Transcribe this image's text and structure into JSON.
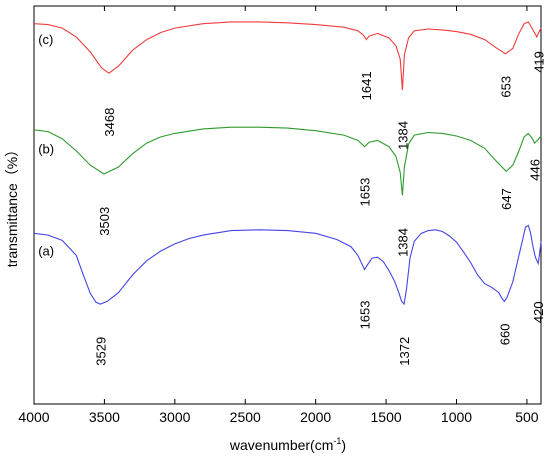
{
  "chart_data": {
    "type": "line",
    "title": "",
    "xlabel": "wavenumber(cm",
    "xlabel_sup": "-1",
    "xlabel_close": ")",
    "ylabel": "transmittance（%）",
    "xlim": [
      4000,
      400
    ],
    "x_reversed": true,
    "x_ticks": [
      4000,
      3500,
      3000,
      2500,
      2000,
      1500,
      1000,
      500
    ],
    "y_ticks_shown": false,
    "grid": false,
    "legend": "none",
    "series": [
      {
        "name": "(c)",
        "color": "#f03c3c",
        "points": [
          [
            4000,
            48.0
          ],
          [
            3900,
            47.9
          ],
          [
            3800,
            47.5
          ],
          [
            3700,
            46.5
          ],
          [
            3600,
            44.8
          ],
          [
            3520,
            43.0
          ],
          [
            3468,
            42.4
          ],
          [
            3400,
            43.2
          ],
          [
            3300,
            45.0
          ],
          [
            3200,
            46.2
          ],
          [
            3100,
            47.0
          ],
          [
            3000,
            47.5
          ],
          [
            2800,
            48.0
          ],
          [
            2600,
            48.2
          ],
          [
            2400,
            48.2
          ],
          [
            2200,
            48.1
          ],
          [
            2000,
            47.9
          ],
          [
            1800,
            47.6
          ],
          [
            1700,
            47.2
          ],
          [
            1660,
            46.7
          ],
          [
            1641,
            46.2
          ],
          [
            1620,
            46.6
          ],
          [
            1560,
            46.9
          ],
          [
            1480,
            46.4
          ],
          [
            1430,
            45.5
          ],
          [
            1400,
            44.0
          ],
          [
            1384,
            40.5
          ],
          [
            1370,
            44.5
          ],
          [
            1340,
            46.4
          ],
          [
            1300,
            47.2
          ],
          [
            1200,
            47.4
          ],
          [
            1100,
            47.3
          ],
          [
            1000,
            47.1
          ],
          [
            900,
            46.8
          ],
          [
            800,
            46.2
          ],
          [
            720,
            45.3
          ],
          [
            653,
            44.6
          ],
          [
            600,
            45.2
          ],
          [
            560,
            46.8
          ],
          [
            520,
            48.0
          ],
          [
            490,
            48.2
          ],
          [
            460,
            47.4
          ],
          [
            430,
            46.5
          ],
          [
            419,
            46.9
          ],
          [
            400,
            47.5
          ]
        ]
      },
      {
        "name": "(b)",
        "color": "#2e9a2e",
        "points": [
          [
            4000,
            36.0
          ],
          [
            3900,
            35.8
          ],
          [
            3800,
            35.0
          ],
          [
            3700,
            33.6
          ],
          [
            3600,
            32.0
          ],
          [
            3503,
            31.0
          ],
          [
            3400,
            31.8
          ],
          [
            3300,
            33.3
          ],
          [
            3200,
            34.5
          ],
          [
            3100,
            35.2
          ],
          [
            3000,
            35.6
          ],
          [
            2800,
            36.1
          ],
          [
            2600,
            36.3
          ],
          [
            2400,
            36.3
          ],
          [
            2200,
            36.2
          ],
          [
            2000,
            35.9
          ],
          [
            1800,
            35.4
          ],
          [
            1700,
            34.8
          ],
          [
            1653,
            34.1
          ],
          [
            1620,
            34.6
          ],
          [
            1560,
            34.8
          ],
          [
            1480,
            34.1
          ],
          [
            1430,
            33.0
          ],
          [
            1400,
            31.2
          ],
          [
            1384,
            28.6
          ],
          [
            1370,
            31.8
          ],
          [
            1340,
            34.4
          ],
          [
            1300,
            35.4
          ],
          [
            1200,
            35.7
          ],
          [
            1100,
            35.6
          ],
          [
            1000,
            35.3
          ],
          [
            900,
            34.8
          ],
          [
            800,
            33.9
          ],
          [
            720,
            32.5
          ],
          [
            647,
            31.3
          ],
          [
            600,
            32.0
          ],
          [
            560,
            33.5
          ],
          [
            520,
            35.2
          ],
          [
            490,
            35.6
          ],
          [
            460,
            35.0
          ],
          [
            446,
            34.5
          ],
          [
            420,
            34.9
          ],
          [
            400,
            35.3
          ]
        ]
      },
      {
        "name": "(a)",
        "color": "#4545e8",
        "points": [
          [
            4000,
            24.3
          ],
          [
            3900,
            24.1
          ],
          [
            3800,
            23.5
          ],
          [
            3700,
            21.8
          ],
          [
            3650,
            19.6
          ],
          [
            3600,
            17.5
          ],
          [
            3560,
            16.5
          ],
          [
            3529,
            16.3
          ],
          [
            3480,
            16.6
          ],
          [
            3400,
            17.6
          ],
          [
            3300,
            19.6
          ],
          [
            3200,
            21.2
          ],
          [
            3100,
            22.3
          ],
          [
            3000,
            23.1
          ],
          [
            2900,
            23.7
          ],
          [
            2800,
            24.1
          ],
          [
            2600,
            24.6
          ],
          [
            2400,
            24.7
          ],
          [
            2200,
            24.6
          ],
          [
            2000,
            24.3
          ],
          [
            1850,
            23.6
          ],
          [
            1750,
            22.8
          ],
          [
            1700,
            21.8
          ],
          [
            1670,
            20.8
          ],
          [
            1653,
            20.2
          ],
          [
            1630,
            20.8
          ],
          [
            1600,
            21.5
          ],
          [
            1560,
            21.6
          ],
          [
            1520,
            21.1
          ],
          [
            1480,
            20.1
          ],
          [
            1440,
            18.9
          ],
          [
            1410,
            17.6
          ],
          [
            1390,
            16.6
          ],
          [
            1372,
            16.3
          ],
          [
            1355,
            18.0
          ],
          [
            1330,
            21.5
          ],
          [
            1300,
            23.4
          ],
          [
            1250,
            24.3
          ],
          [
            1200,
            24.6
          ],
          [
            1150,
            24.7
          ],
          [
            1100,
            24.5
          ],
          [
            1050,
            24.0
          ],
          [
            1000,
            23.3
          ],
          [
            950,
            22.2
          ],
          [
            900,
            21.0
          ],
          [
            850,
            19.6
          ],
          [
            800,
            18.6
          ],
          [
            750,
            18.2
          ],
          [
            700,
            17.6
          ],
          [
            680,
            17.0
          ],
          [
            660,
            16.6
          ],
          [
            640,
            17.1
          ],
          [
            600,
            18.8
          ],
          [
            560,
            21.6
          ],
          [
            530,
            23.6
          ],
          [
            510,
            25.0
          ],
          [
            490,
            25.2
          ],
          [
            475,
            24.4
          ],
          [
            455,
            22.6
          ],
          [
            440,
            21.6
          ],
          [
            420,
            20.9
          ],
          [
            410,
            22.0
          ],
          [
            400,
            23.4
          ]
        ]
      }
    ],
    "curve_labels": [
      {
        "text": "(c)",
        "x": 3970,
        "y": 45.7
      },
      {
        "text": "(b)",
        "x": 3970,
        "y": 33.3
      },
      {
        "text": "(a)",
        "x": 3970,
        "y": 21.8
      }
    ],
    "peak_labels": [
      {
        "text": "3468",
        "x": 3468,
        "y": 38.5
      },
      {
        "text": "1641",
        "x": 1641,
        "y": 42.6
      },
      {
        "text": "1384",
        "x": 1384,
        "y": 37.0
      },
      {
        "text": "653",
        "x": 653,
        "y": 42.1
      },
      {
        "text": "419",
        "x": 419,
        "y": 44.9
      },
      {
        "text": "3503",
        "x": 3503,
        "y": 27.3
      },
      {
        "text": "1653",
        "x": 1653,
        "y": 30.6
      },
      {
        "text": "1384",
        "x": 1384,
        "y": 24.9
      },
      {
        "text": "647",
        "x": 647,
        "y": 29.4
      },
      {
        "text": "446",
        "x": 446,
        "y": 32.7
      },
      {
        "text": "3529",
        "x": 3529,
        "y": 12.6
      },
      {
        "text": "1653",
        "x": 1653,
        "y": 16.7
      },
      {
        "text": "1372",
        "x": 1372,
        "y": 12.6
      },
      {
        "text": "660",
        "x": 660,
        "y": 14.1
      },
      {
        "text": "420",
        "x": 420,
        "y": 16.6
      }
    ],
    "ylim": [
      5,
      50
    ]
  }
}
